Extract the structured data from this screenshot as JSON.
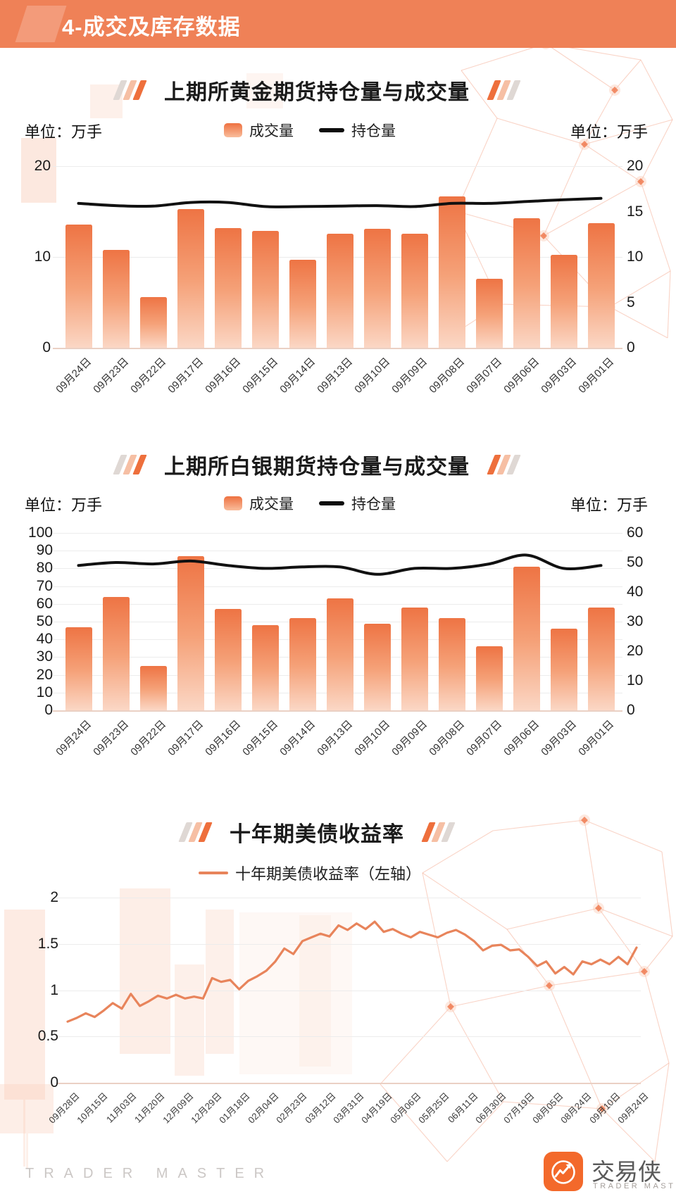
{
  "page": {
    "header": {
      "title": "4-成交及库存数据"
    },
    "footer": {
      "watermark": "TRADER MASTER",
      "brand_cn": "交易侠",
      "brand_en": "TRADER MASTER"
    },
    "colors": {
      "header_bg": "#EF8157",
      "bar_gradient_top": "#EE7444",
      "bar_gradient_bottom": "#FBD7C5",
      "open_interest_line": "#111111",
      "yield_line": "#E8845B",
      "accent_orange": "#F26B2D"
    }
  },
  "chart_data": [
    {
      "type": "bar",
      "title": "上期所黄金期货持仓量与成交量",
      "unit_left": "单位：万手",
      "unit_right": "单位：万手",
      "legend": [
        {
          "label": "成交量"
        },
        {
          "label": "持仓量"
        }
      ],
      "legend_position": "top",
      "grid": true,
      "categories": [
        "09月24日",
        "09月23日",
        "09月22日",
        "09月17日",
        "09月16日",
        "09月15日",
        "09月14日",
        "09月13日",
        "09月10日",
        "09月09日",
        "09月08日",
        "09月07日",
        "09月06日",
        "09月03日",
        "09月01日"
      ],
      "series": [
        {
          "name": "成交量",
          "kind": "bar",
          "axis": "left",
          "values": [
            13.6,
            10.8,
            5.6,
            15.3,
            13.2,
            12.9,
            9.7,
            12.6,
            13.1,
            12.6,
            16.7,
            7.6,
            14.3,
            10.2,
            13.7
          ]
        },
        {
          "name": "持仓量",
          "kind": "line",
          "axis": "right",
          "values": [
            15.9,
            15.65,
            15.6,
            16.0,
            16.0,
            15.55,
            15.55,
            15.6,
            15.65,
            15.55,
            15.9,
            15.9,
            16.1,
            16.3,
            16.45
          ]
        }
      ],
      "axis_left": {
        "min": 0,
        "max": 20,
        "ticks": [
          0,
          10,
          20
        ]
      },
      "axis_right": {
        "min": 0,
        "max": 20,
        "ticks": [
          0,
          5,
          10,
          15,
          20
        ]
      }
    },
    {
      "type": "bar",
      "title": "上期所白银期货持仓量与成交量",
      "unit_left": "单位：万手",
      "unit_right": "单位：万手",
      "legend": [
        {
          "label": "成交量"
        },
        {
          "label": "持仓量"
        }
      ],
      "legend_position": "top",
      "grid": true,
      "categories": [
        "09月24日",
        "09月23日",
        "09月22日",
        "09月17日",
        "09月16日",
        "09月15日",
        "09月14日",
        "09月13日",
        "09月10日",
        "09月09日",
        "09月08日",
        "09月07日",
        "09月06日",
        "09月03日",
        "09月01日"
      ],
      "series": [
        {
          "name": "成交量",
          "kind": "bar",
          "axis": "left",
          "values": [
            47,
            64,
            25,
            87,
            57,
            48,
            52,
            63,
            49,
            58,
            52,
            36,
            81,
            46,
            58
          ]
        },
        {
          "name": "持仓量",
          "kind": "line",
          "axis": "right",
          "values": [
            49,
            50,
            49.5,
            50.5,
            49,
            48,
            48.5,
            48.5,
            46,
            48,
            48,
            49.5,
            52.5,
            48,
            49
          ]
        }
      ],
      "axis_left": {
        "min": 0,
        "max": 100,
        "ticks": [
          0,
          10,
          20,
          30,
          40,
          50,
          60,
          70,
          80,
          90,
          100
        ]
      },
      "axis_right": {
        "min": 0,
        "max": 60,
        "ticks": [
          0,
          10,
          20,
          30,
          40,
          50,
          60
        ]
      }
    },
    {
      "type": "line",
      "title": "十年期美债收益率",
      "legend": [
        {
          "label": "十年期美债收益率（左轴）"
        }
      ],
      "legend_position": "top",
      "grid": true,
      "categories": [
        "09月28日",
        "10月15日",
        "11月03日",
        "11月20日",
        "12月09日",
        "12月29日",
        "01月18日",
        "02月04日",
        "02月23日",
        "03月12日",
        "03月31日",
        "04月19日",
        "05月06日",
        "05月25日",
        "06月11日",
        "06月30日",
        "07月19日",
        "08月05日",
        "08月24日",
        "09月10日",
        "09月24日"
      ],
      "series": [
        {
          "name": "十年期美债收益率（左轴）",
          "kind": "line",
          "axis": "left",
          "values": [
            0.66,
            0.7,
            0.75,
            0.71,
            0.78,
            0.86,
            0.8,
            0.96,
            0.83,
            0.88,
            0.94,
            0.91,
            0.95,
            0.91,
            0.93,
            0.91,
            1.13,
            1.09,
            1.11,
            1.01,
            1.1,
            1.15,
            1.21,
            1.31,
            1.45,
            1.39,
            1.53,
            1.57,
            1.61,
            1.58,
            1.7,
            1.65,
            1.72,
            1.66,
            1.74,
            1.63,
            1.66,
            1.61,
            1.57,
            1.63,
            1.6,
            1.57,
            1.62,
            1.65,
            1.6,
            1.53,
            1.43,
            1.48,
            1.49,
            1.43,
            1.44,
            1.36,
            1.26,
            1.31,
            1.18,
            1.25,
            1.17,
            1.31,
            1.28,
            1.33,
            1.28,
            1.36,
            1.28,
            1.46
          ]
        }
      ],
      "axis_left": {
        "min": 0,
        "max": 2,
        "ticks": [
          0,
          0.5,
          1,
          1.5,
          2
        ]
      }
    }
  ]
}
